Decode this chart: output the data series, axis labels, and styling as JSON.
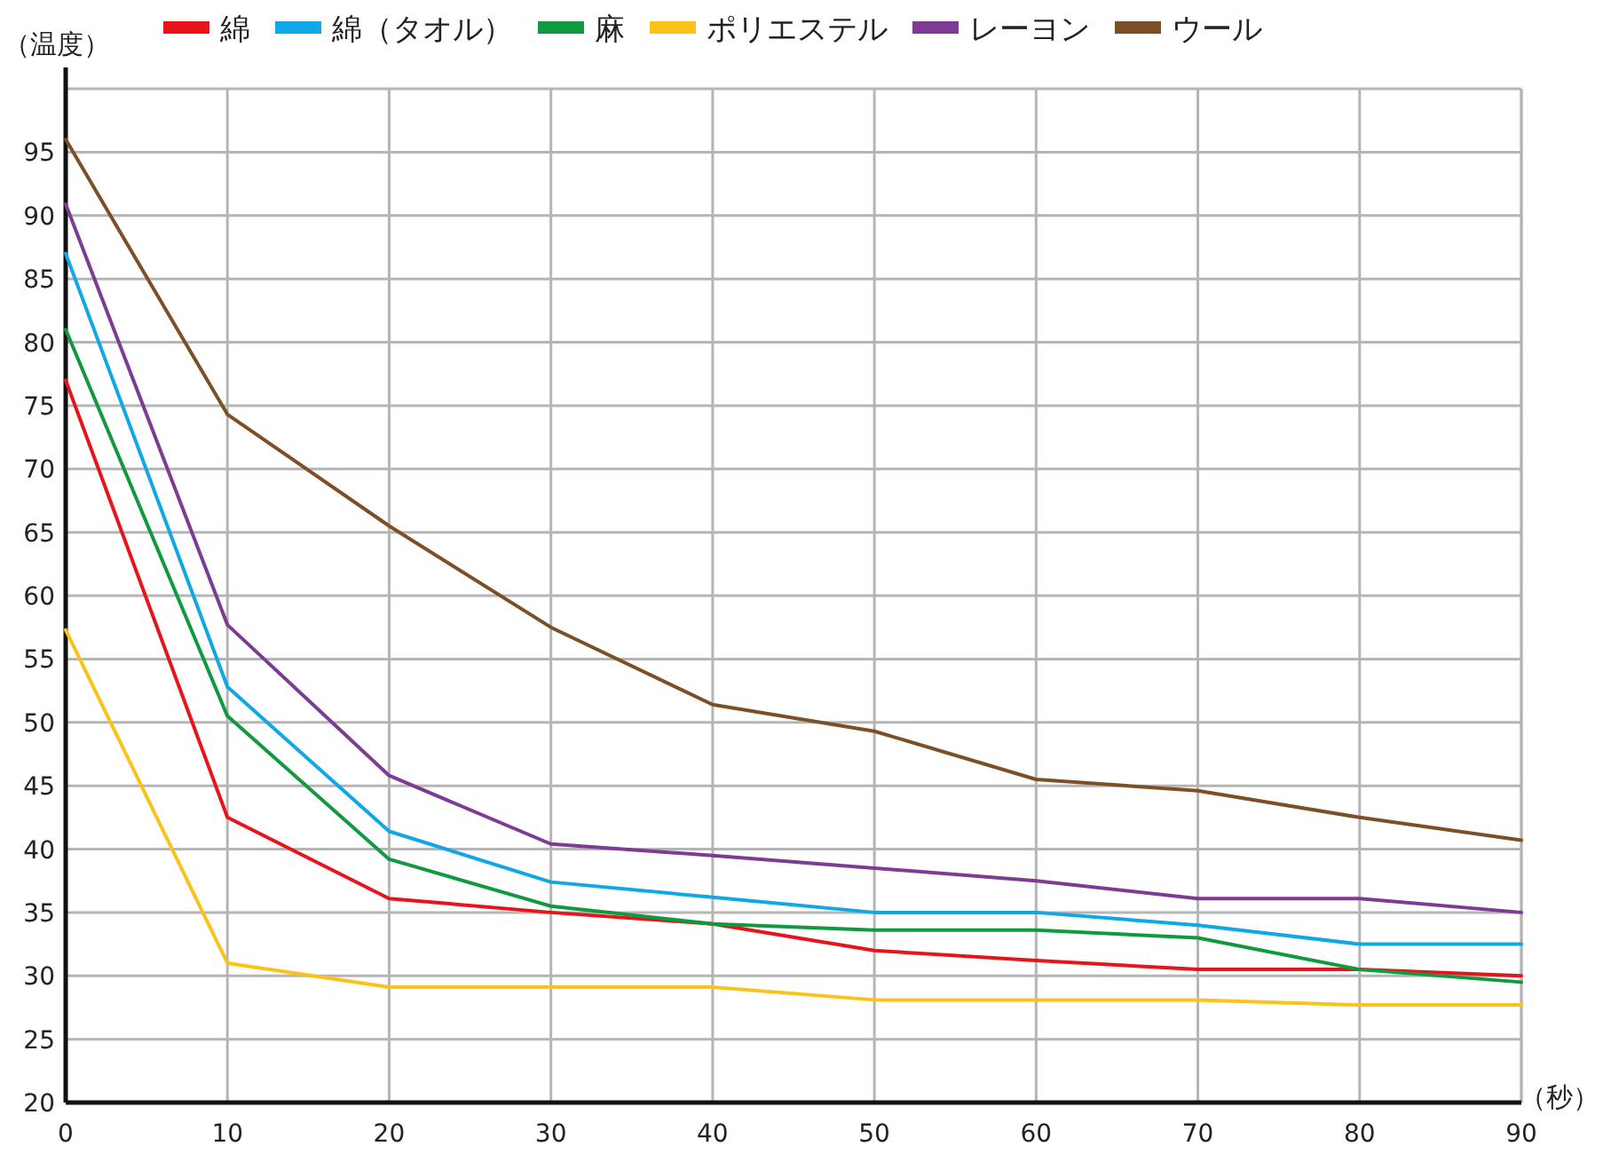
{
  "chart_data": {
    "type": "line",
    "ylabel": "（温度）",
    "xlabel": "（秒）",
    "x": [
      0,
      10,
      20,
      30,
      40,
      50,
      60,
      70,
      80,
      90
    ],
    "series": [
      {
        "name": "綿",
        "color": "#e8141b",
        "values": [
          77,
          42.5,
          36.1,
          35,
          34.1,
          32,
          31.2,
          30.5,
          30.5,
          30
        ]
      },
      {
        "name": "綿（タオル）",
        "color": "#10a7e6",
        "values": [
          87,
          52.8,
          41.4,
          37.4,
          36.2,
          35,
          35,
          34,
          32.5,
          32.5
        ]
      },
      {
        "name": "麻",
        "color": "#109a40",
        "values": [
          81,
          50.5,
          39.2,
          35.5,
          34.1,
          33.6,
          33.6,
          33,
          30.5,
          29.5
        ]
      },
      {
        "name": "ポリエステル",
        "color": "#fbc31a",
        "values": [
          57.3,
          31,
          29.1,
          29.1,
          29.1,
          28.1,
          28.1,
          28.1,
          27.7,
          27.7
        ]
      },
      {
        "name": "レーヨン",
        "color": "#7d3b93",
        "values": [
          90.9,
          57.7,
          45.8,
          40.4,
          39.5,
          38.5,
          37.5,
          36.1,
          36.1,
          35
        ]
      },
      {
        "name": "ウール",
        "color": "#7d4f27",
        "values": [
          96,
          74.3,
          65.5,
          57.5,
          51.4,
          49.3,
          45.5,
          44.6,
          42.5,
          40.7
        ]
      }
    ],
    "xlim": [
      0,
      90
    ],
    "xticks": [
      0,
      10,
      20,
      30,
      40,
      50,
      60,
      70,
      80,
      90
    ],
    "ylim": [
      20,
      100
    ],
    "yticks": [
      20,
      25,
      30,
      35,
      40,
      45,
      50,
      55,
      60,
      65,
      70,
      75,
      80,
      85,
      90,
      95
    ],
    "grid": true,
    "legend": "top",
    "marker": "none",
    "line_style": "solid"
  }
}
